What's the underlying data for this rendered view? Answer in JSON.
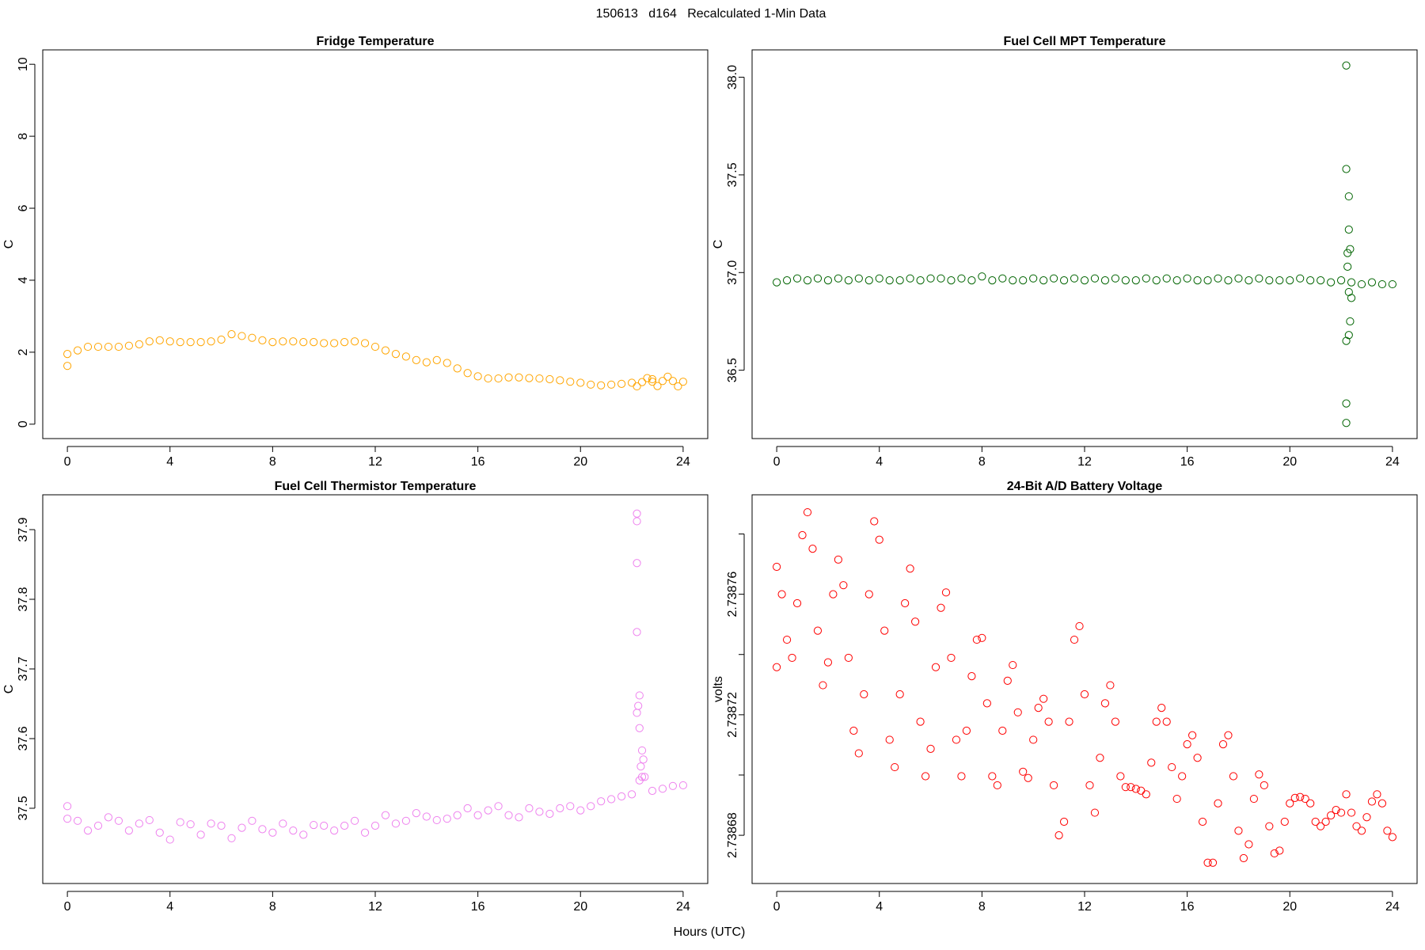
{
  "title": "150613   d164   Recalculated 1-Min Data",
  "x_label": "Hours (UTC)",
  "chart_data": [
    {
      "type": "scatter",
      "title": "Fridge Temperature",
      "y_label": "C",
      "color": "#FFA500",
      "xlim": [
        -0.96,
        24.96
      ],
      "xticks": [
        0,
        4,
        8,
        12,
        16,
        20,
        24
      ],
      "ylim": [
        -0.4,
        10.4
      ],
      "yticks": [
        0,
        2,
        4,
        6,
        8,
        10
      ],
      "x": [
        0,
        0.4,
        0.8,
        1.2,
        1.6,
        2,
        2.4,
        2.8,
        3.2,
        3.6,
        4,
        4.4,
        4.8,
        5.2,
        5.6,
        6,
        6.4,
        6.8,
        7.2,
        7.6,
        8,
        8.4,
        8.8,
        9.2,
        9.6,
        10,
        10.4,
        10.8,
        11.2,
        11.6,
        12,
        12.4,
        12.8,
        13.2,
        13.6,
        14,
        14.4,
        14.8,
        15.2,
        15.6,
        16,
        16.4,
        16.8,
        17.2,
        17.6,
        18,
        18.4,
        18.8,
        19.2,
        19.6,
        20,
        20.4,
        20.8,
        21.2,
        21.6,
        22,
        22.4,
        22.8,
        23.2,
        23.6,
        24,
        0,
        22.2,
        22.6,
        23,
        23.4,
        23.8,
        22.8
      ],
      "values": [
        1.95,
        2.05,
        2.15,
        2.15,
        2.15,
        2.15,
        2.18,
        2.22,
        2.3,
        2.33,
        2.3,
        2.28,
        2.28,
        2.28,
        2.3,
        2.35,
        2.5,
        2.45,
        2.4,
        2.33,
        2.28,
        2.3,
        2.3,
        2.28,
        2.28,
        2.25,
        2.25,
        2.28,
        2.3,
        2.25,
        2.15,
        2.05,
        1.95,
        1.88,
        1.78,
        1.72,
        1.78,
        1.7,
        1.55,
        1.42,
        1.33,
        1.27,
        1.27,
        1.3,
        1.3,
        1.28,
        1.27,
        1.25,
        1.22,
        1.18,
        1.15,
        1.1,
        1.08,
        1.1,
        1.12,
        1.15,
        1.17,
        1.18,
        1.2,
        1.2,
        1.18,
        1.62,
        1.05,
        1.28,
        1.06,
        1.32,
        1.05,
        1.25
      ]
    },
    {
      "type": "scatter",
      "title": "Fuel Cell MPT Temperature",
      "y_label": "C",
      "color": "#006400",
      "xlim": [
        -0.96,
        24.96
      ],
      "xticks": [
        0,
        4,
        8,
        12,
        16,
        20,
        24
      ],
      "ylim": [
        36.15,
        38.14
      ],
      "yticks": [
        36.5,
        {
          "value": 37,
          "label": "37.0"
        },
        37.5,
        {
          "value": 38,
          "label": "38.0"
        }
      ],
      "x": [
        0,
        0.4,
        0.8,
        1.2,
        1.6,
        2,
        2.4,
        2.8,
        3.2,
        3.6,
        4,
        4.4,
        4.8,
        5.2,
        5.6,
        6,
        6.4,
        6.8,
        7.2,
        7.6,
        8,
        8.4,
        8.8,
        9.2,
        9.6,
        10,
        10.4,
        10.8,
        11.2,
        11.6,
        12,
        12.4,
        12.8,
        13.2,
        13.6,
        14,
        14.4,
        14.8,
        15.2,
        15.6,
        16,
        16.4,
        16.8,
        17.2,
        17.6,
        18,
        18.4,
        18.8,
        19.2,
        19.6,
        20,
        20.4,
        20.8,
        21.2,
        21.6,
        22,
        22.4,
        22.8,
        23.2,
        23.6,
        24,
        22.2,
        22.2,
        22.3,
        22.3,
        22.25,
        22.35,
        22.25,
        22.3,
        22.4,
        22.35,
        22.3,
        22.2,
        22.2,
        22.2
      ],
      "values": [
        36.95,
        36.96,
        36.97,
        36.96,
        36.97,
        36.96,
        36.97,
        36.96,
        36.97,
        36.96,
        36.97,
        36.96,
        36.96,
        36.97,
        36.96,
        36.97,
        36.97,
        36.96,
        36.97,
        36.96,
        36.98,
        36.96,
        36.97,
        36.96,
        36.96,
        36.97,
        36.96,
        36.97,
        36.96,
        36.97,
        36.96,
        36.97,
        36.96,
        36.97,
        36.96,
        36.96,
        36.97,
        36.96,
        36.97,
        36.96,
        36.97,
        36.96,
        36.96,
        36.97,
        36.96,
        36.97,
        36.96,
        36.97,
        36.96,
        36.96,
        36.96,
        36.97,
        36.96,
        36.96,
        36.95,
        36.96,
        36.95,
        36.94,
        36.95,
        36.94,
        36.94,
        38.06,
        37.53,
        37.39,
        37.22,
        37.1,
        37.12,
        37.03,
        36.9,
        36.87,
        36.75,
        36.68,
        36.65,
        36.33,
        36.23
      ]
    },
    {
      "type": "scatter",
      "title": "Fuel Cell Thermistor Temperature",
      "y_label": "C",
      "color": "#EE82EE",
      "xlim": [
        -0.96,
        24.96
      ],
      "xticks": [
        0,
        4,
        8,
        12,
        16,
        20,
        24
      ],
      "ylim": [
        37.392,
        37.95
      ],
      "yticks": [
        37.5,
        37.6,
        37.7,
        37.8,
        37.9
      ],
      "x": [
        0,
        0.4,
        0.8,
        1.2,
        1.6,
        2,
        2.4,
        2.8,
        3.2,
        3.6,
        4,
        4.4,
        4.8,
        5.2,
        5.6,
        6,
        6.4,
        6.8,
        7.2,
        7.6,
        8,
        8.4,
        8.8,
        9.2,
        9.6,
        10,
        10.4,
        10.8,
        11.2,
        11.6,
        12,
        12.4,
        12.8,
        13.2,
        13.6,
        14,
        14.4,
        14.8,
        15.2,
        15.6,
        16,
        16.4,
        16.8,
        17.2,
        17.6,
        18,
        18.4,
        18.8,
        19.2,
        19.6,
        20,
        20.4,
        20.8,
        21.2,
        21.6,
        22,
        22.4,
        22.8,
        23.2,
        23.6,
        24,
        0,
        22.2,
        22.2,
        22.2,
        22.2,
        22.3,
        22.25,
        22.2,
        22.3,
        22.4,
        22.35,
        22.45,
        22.5,
        22.3
      ],
      "values": [
        37.485,
        37.482,
        37.468,
        37.475,
        37.487,
        37.482,
        37.468,
        37.478,
        37.483,
        37.465,
        37.455,
        37.48,
        37.477,
        37.462,
        37.478,
        37.475,
        37.457,
        37.472,
        37.482,
        37.47,
        37.465,
        37.478,
        37.468,
        37.462,
        37.476,
        37.475,
        37.468,
        37.475,
        37.482,
        37.465,
        37.475,
        37.49,
        37.478,
        37.482,
        37.493,
        37.488,
        37.483,
        37.485,
        37.49,
        37.5,
        37.49,
        37.497,
        37.503,
        37.49,
        37.487,
        37.5,
        37.495,
        37.492,
        37.5,
        37.503,
        37.497,
        37.503,
        37.51,
        37.513,
        37.517,
        37.52,
        37.545,
        37.525,
        37.528,
        37.532,
        37.533,
        37.503,
        37.923,
        37.912,
        37.852,
        37.753,
        37.662,
        37.647,
        37.637,
        37.615,
        37.583,
        37.56,
        37.57,
        37.545,
        37.54
      ]
    },
    {
      "type": "scatter",
      "title": "24-Bit A/D Battery Voltage",
      "y_label": "volts",
      "color": "#FF0000",
      "xlim": [
        -0.96,
        24.96
      ],
      "xticks": [
        0,
        4,
        8,
        12,
        16,
        20,
        24
      ],
      "ylim": [
        2.738664,
        2.738793
      ],
      "yticks": [
        2.73868,
        {
          "value": 2.7387,
          "label": null
        },
        2.73872,
        {
          "value": 2.73874,
          "label": null
        },
        2.73876,
        {
          "value": 2.73878,
          "label": null
        }
      ],
      "x": [
        0,
        0,
        0.2,
        0.4,
        0.6,
        0.8,
        1,
        1.2,
        1.4,
        1.6,
        1.8,
        2,
        2.2,
        2.4,
        2.6,
        2.8,
        3,
        3.2,
        3.4,
        3.6,
        3.8,
        4,
        4.2,
        4.4,
        4.6,
        4.8,
        5,
        5.2,
        5.4,
        5.6,
        5.8,
        6,
        6.2,
        6.4,
        6.6,
        6.8,
        7,
        7.2,
        7.4,
        7.6,
        7.8,
        8,
        8.2,
        8.4,
        8.6,
        8.8,
        9,
        9.2,
        9.4,
        9.6,
        9.8,
        10,
        10.2,
        10.4,
        10.6,
        10.8,
        11,
        11.2,
        11.4,
        11.6,
        11.8,
        12,
        12.2,
        12.4,
        12.6,
        12.8,
        13,
        13.2,
        13.4,
        13.6,
        13.8,
        14,
        14.2,
        14.4,
        14.6,
        14.8,
        15,
        15.2,
        15.4,
        15.6,
        15.8,
        16,
        16.2,
        16.4,
        16.6,
        16.8,
        17,
        17.2,
        17.4,
        17.6,
        17.8,
        18,
        18.2,
        18.4,
        18.6,
        18.8,
        19,
        19.2,
        19.4,
        19.6,
        19.8,
        20,
        20.2,
        20.4,
        20.6,
        20.8,
        21,
        21.2,
        21.4,
        21.6,
        21.8,
        22,
        22.2,
        22.4,
        22.6,
        22.8,
        23,
        23.2,
        23.4,
        23.6,
        23.8,
        24
      ],
      "values": [
        2.7387358,
        2.7387691,
        2.73876,
        2.7387449,
        2.7387389,
        2.738757,
        2.7387796,
        2.7387872,
        2.7387751,
        2.7387479,
        2.7387298,
        2.7387374,
        2.73876,
        2.7387715,
        2.738763,
        2.7387389,
        2.7387147,
        2.7387072,
        2.7387268,
        2.73876,
        2.7387842,
        2.7387781,
        2.7387479,
        2.7387117,
        2.7387026,
        2.7387268,
        2.738757,
        2.7387685,
        2.7387509,
        2.7387177,
        2.7386996,
        2.7387087,
        2.7387358,
        2.7387555,
        2.7387606,
        2.7387389,
        2.7387117,
        2.7386996,
        2.7387147,
        2.7387328,
        2.7387449,
        2.7387455,
        2.7387238,
        2.7386996,
        2.7386966,
        2.7387147,
        2.7387313,
        2.7387365,
        2.7387208,
        2.7387011,
        2.738699,
        2.7387117,
        2.7387223,
        2.7387253,
        2.7387177,
        2.7386966,
        2.73868,
        2.7386845,
        2.7387177,
        2.7387449,
        2.7387494,
        2.7387268,
        2.7386966,
        2.7386875,
        2.7387057,
        2.7387238,
        2.7387298,
        2.7387177,
        2.7386996,
        2.738696,
        2.738696,
        2.7386954,
        2.7386948,
        2.7386936,
        2.7387041,
        2.7387177,
        2.7387223,
        2.7387177,
        2.7387026,
        2.7386921,
        2.7386996,
        2.7387102,
        2.7387132,
        2.7387057,
        2.7386845,
        2.7386709,
        2.7386709,
        2.7386906,
        2.7387102,
        2.7387132,
        2.7386996,
        2.7386815,
        2.7386724,
        2.738677,
        2.7386921,
        2.7387002,
        2.7386966,
        2.738683,
        2.738674,
        2.7386749,
        2.7386845,
        2.7386906,
        2.7386924,
        2.7386927,
        2.7386921,
        2.7386906,
        2.7386845,
        2.738683,
        2.7386845,
        2.7386866,
        2.7386884,
        2.7386875,
        2.7386936,
        2.7386875,
        2.738683,
        2.7386815,
        2.738686,
        2.7386912,
        2.7386936,
        2.7386906,
        2.7386815,
        2.7386794
      ]
    }
  ]
}
